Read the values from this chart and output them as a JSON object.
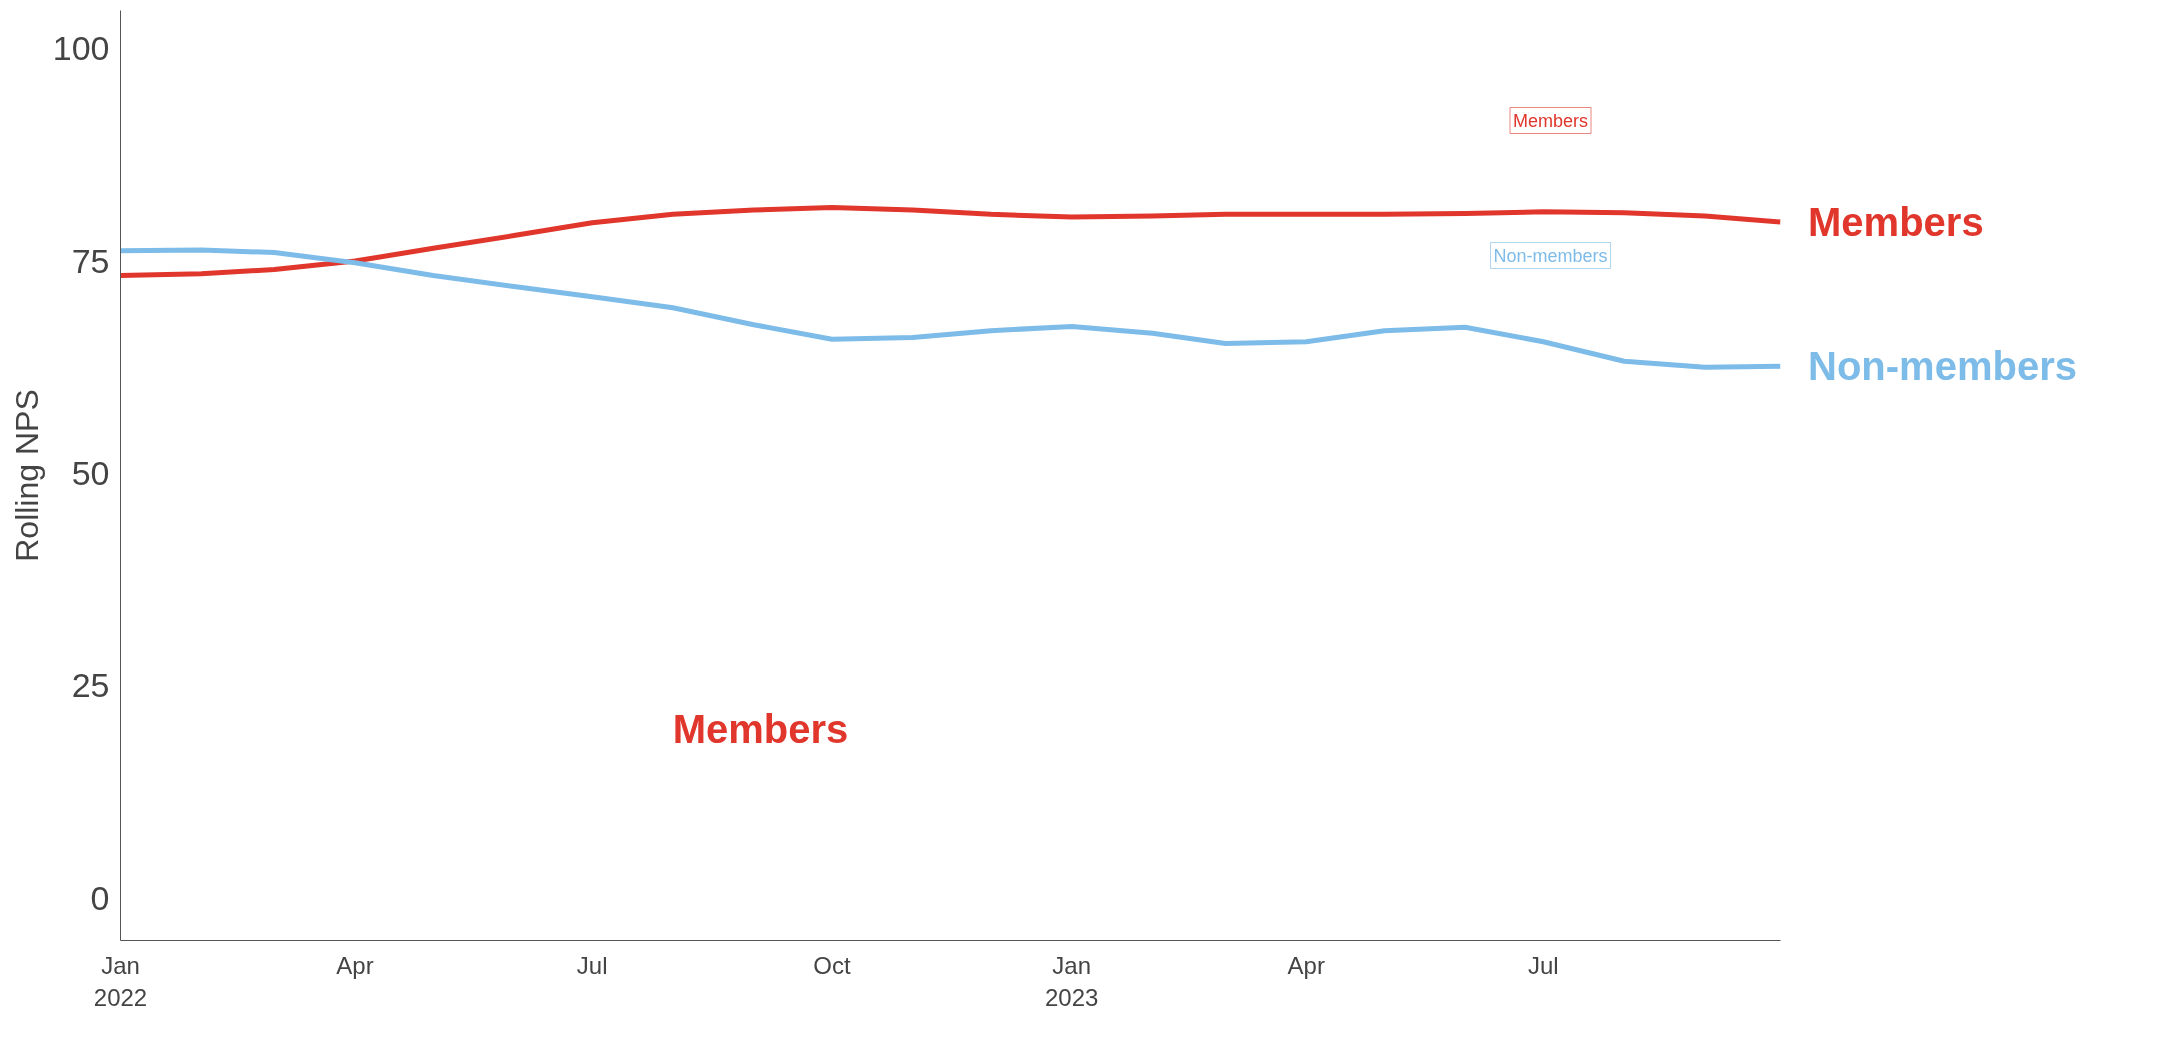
{
  "chart_data": {
    "type": "line",
    "ylabel": "Rolling NPS",
    "x": [
      "2022-01-01",
      "2022-02-01",
      "2022-03-01",
      "2022-04-01",
      "2022-05-01",
      "2022-06-01",
      "2022-07-01",
      "2022-08-01",
      "2022-09-01",
      "2022-10-01",
      "2022-11-01",
      "2022-12-01",
      "2023-01-01",
      "2023-02-01",
      "2023-03-01",
      "2023-04-01",
      "2023-05-01",
      "2023-06-01",
      "2023-07-01",
      "2023-08-01",
      "2023-09-01",
      "2023-09-30"
    ],
    "series": [
      {
        "name": "Members",
        "color": "#e0362c",
        "values": [
          73.3,
          73.5,
          74,
          75,
          76.5,
          78,
          79.5,
          80.5,
          81,
          81.3,
          81,
          80.5,
          80.2,
          80.3,
          80.5,
          80.5,
          80.5,
          80.6,
          80.8,
          80.7,
          80.3,
          79.6
        ]
      },
      {
        "name": "Non-members",
        "color": "#7dbbe8",
        "values": [
          76.2,
          76.3,
          76,
          74.8,
          73.3,
          72,
          70.8,
          69.5,
          67.5,
          65.8,
          66,
          66.8,
          67.3,
          66.5,
          65.3,
          65.5,
          66.8,
          67.2,
          65.5,
          63.2,
          62.5,
          62.6
        ]
      }
    ],
    "xlim": [
      "2022-01-01",
      "2023-09-30"
    ],
    "ylim": [
      -5,
      104.5
    ],
    "xticks": [
      {
        "value": "2022-01-01",
        "label": "Jan\n2022"
      },
      {
        "value": "2022-04-01",
        "label": "Apr"
      },
      {
        "value": "2022-07-01",
        "label": "Jul"
      },
      {
        "value": "2022-10-01",
        "label": "Oct"
      },
      {
        "value": "2023-01-01",
        "label": "Jan\n2023"
      },
      {
        "value": "2023-04-01",
        "label": "Apr"
      },
      {
        "value": "2023-07-01",
        "label": "Jul"
      }
    ],
    "yticks": [
      0,
      25,
      50,
      75,
      100
    ],
    "annotations": [
      "Members",
      "Non-members",
      "Members"
    ],
    "grid": false,
    "marker": "none",
    "line_style": "solid"
  }
}
